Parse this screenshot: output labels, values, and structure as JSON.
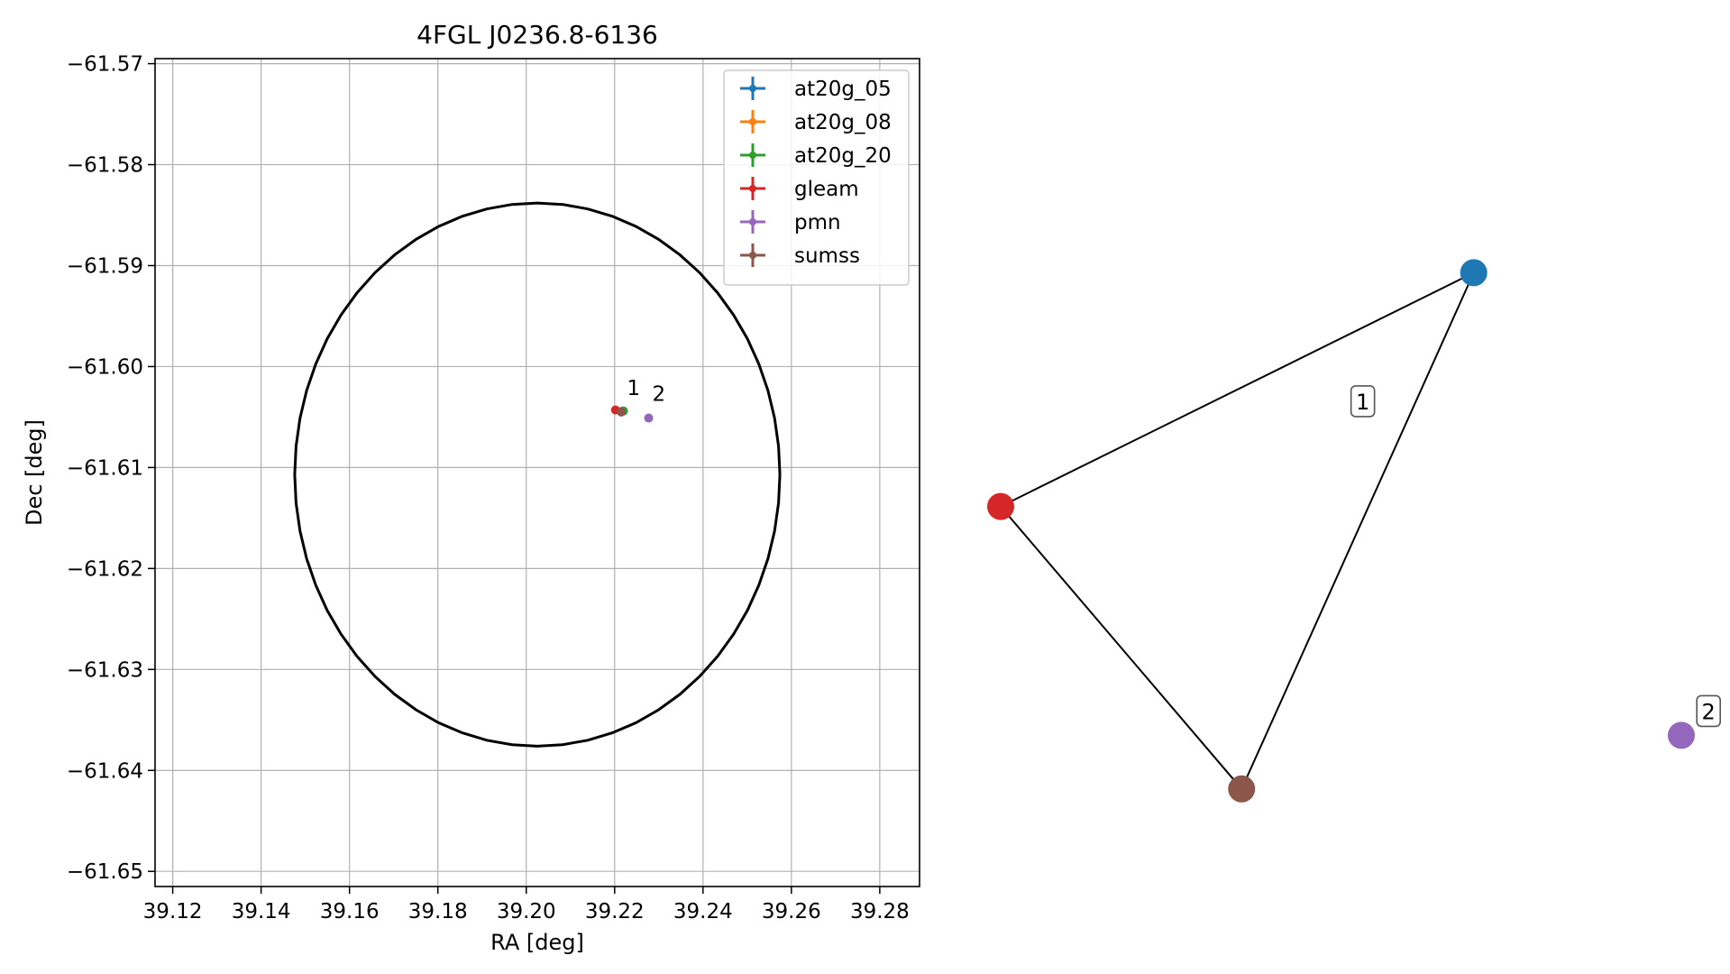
{
  "figure": {
    "title": "4FGL J0236.8-6136"
  },
  "chart_data": [
    {
      "type": "scatter",
      "title": "4FGL J0236.8-6136",
      "xlabel": "RA [deg]",
      "ylabel": "Dec [deg]",
      "xlim": [
        39.116,
        39.289
      ],
      "ylim": [
        -61.6515,
        -61.5695
      ],
      "xticks": [
        "39.12",
        "39.14",
        "39.16",
        "39.18",
        "39.20",
        "39.22",
        "39.24",
        "39.26",
        "39.28"
      ],
      "xtick_values": [
        39.12,
        39.14,
        39.16,
        39.18,
        39.2,
        39.22,
        39.24,
        39.26,
        39.28
      ],
      "yticks": [
        "−61.57",
        "−61.58",
        "−61.59",
        "−61.60",
        "−61.61",
        "−61.62",
        "−61.63",
        "−61.64",
        "−61.65"
      ],
      "ytick_values": [
        -61.57,
        -61.58,
        -61.59,
        -61.6,
        -61.61,
        -61.62,
        -61.63,
        -61.64,
        -61.65
      ],
      "grid": true,
      "legend_position": "top-right",
      "ellipse": {
        "center": [
          39.2025,
          -61.6107
        ],
        "semi_axis_ra": 0.0549,
        "semi_axis_dec": 0.0269,
        "color": "#000000"
      },
      "series": [
        {
          "name": "at20g_05",
          "color": "#1f77b4",
          "points": [
            {
              "x": 39.2218,
              "y": -61.6044
            }
          ]
        },
        {
          "name": "at20g_08",
          "color": "#ff7f0e",
          "points": [
            {
              "x": 39.2219,
              "y": -61.6044
            }
          ]
        },
        {
          "name": "at20g_20",
          "color": "#2ca02c",
          "points": [
            {
              "x": 39.222,
              "y": -61.6044
            }
          ]
        },
        {
          "name": "gleam",
          "color": "#d62728",
          "points": [
            {
              "x": 39.2202,
              "y": -61.6043
            }
          ]
        },
        {
          "name": "pmn",
          "color": "#9467bd",
          "points": [
            {
              "x": 39.2277,
              "y": -61.6051
            }
          ]
        },
        {
          "name": "sumss",
          "color": "#8c564b",
          "points": [
            {
              "x": 39.2215,
              "y": -61.6045
            }
          ]
        }
      ],
      "annotations": [
        {
          "text": "1",
          "x": 39.2228,
          "y": -61.6028
        },
        {
          "text": "2",
          "x": 39.2285,
          "y": -61.6034
        }
      ]
    },
    {
      "type": "network",
      "nodes": [
        {
          "id": "at20g_05",
          "color": "#1f77b4",
          "pos": [
            0.695,
            0.28
          ]
        },
        {
          "id": "gleam",
          "color": "#d62728",
          "pos": [
            0.0,
            0.52
          ]
        },
        {
          "id": "sumss",
          "color": "#8c564b",
          "pos": [
            0.354,
            0.81
          ]
        },
        {
          "id": "pmn",
          "color": "#9467bd",
          "pos": [
            1.0,
            0.755
          ]
        }
      ],
      "edges": [
        [
          "at20g_05",
          "gleam"
        ],
        [
          "gleam",
          "sumss"
        ],
        [
          "sumss",
          "at20g_05"
        ]
      ],
      "labels": [
        {
          "text": "1",
          "pos": [
            0.532,
            0.412
          ]
        },
        {
          "text": "2",
          "pos": [
            1.04,
            0.73
          ]
        }
      ]
    }
  ]
}
